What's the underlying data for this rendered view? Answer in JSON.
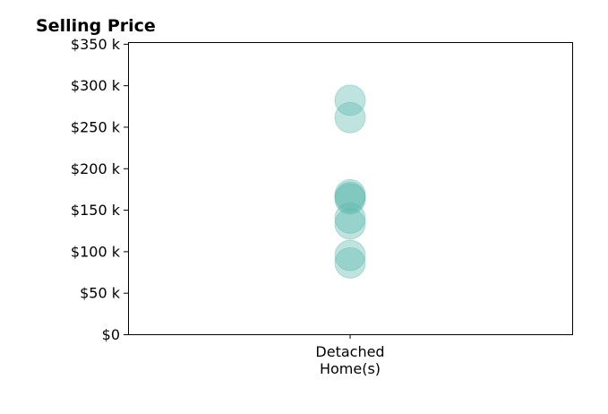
{
  "chart_data": {
    "type": "scatter",
    "title": "Selling Price",
    "xlabel": "",
    "ylabel": "",
    "categories": [
      [
        "Detached",
        "Home(s)"
      ]
    ],
    "y_tick_labels": [
      "$0",
      "$50 k",
      "$100 k",
      "$150 k",
      "$200 k",
      "$250 k",
      "$300 k",
      "$350 k"
    ],
    "y_tick_values": [
      0,
      50000,
      100000,
      150000,
      200000,
      250000,
      300000,
      350000
    ],
    "ylim": [
      0,
      352000
    ],
    "grid": false,
    "series": [
      {
        "category_index": 0,
        "values": [
          282000,
          261000,
          168000,
          165000,
          163000,
          140000,
          133000,
          95000,
          86000
        ]
      }
    ],
    "marker_color": "#5fb8ae",
    "marker_opacity": 0.4
  }
}
